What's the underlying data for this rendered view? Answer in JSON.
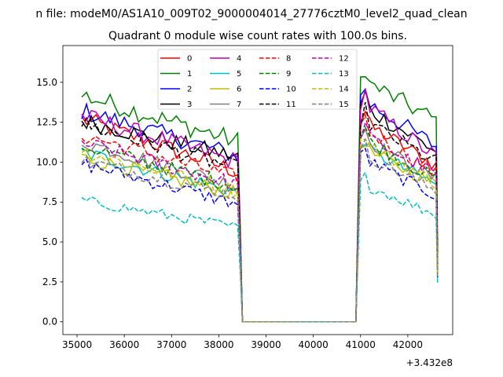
{
  "chart_data": {
    "type": "line",
    "suptitle": "n file: modeM0/AS1A10_009T02_9000004014_27776cztM0_level2_quad_clean",
    "title": "Quadrant 0 module wise count rates with 100.0s bins.",
    "xlabel": "",
    "ylabel": "",
    "x_offset_label": "+3.432e8",
    "xlim": [
      34700,
      42950
    ],
    "ylim": [
      -0.8,
      17.3
    ],
    "x_ticks": [
      35000,
      36000,
      37000,
      38000,
      39000,
      40000,
      41000,
      42000
    ],
    "x_tick_labels": [
      "35000",
      "36000",
      "37000",
      "38000",
      "39000",
      "40000",
      "41000",
      "42000"
    ],
    "y_ticks": [
      0,
      2.5,
      5,
      7.5,
      10,
      12.5,
      15
    ],
    "y_tick_labels": [
      "0.0",
      "2.5",
      "5.0",
      "7.5",
      "10.0",
      "12.5",
      "15.0"
    ],
    "grid": false,
    "legend_position": "top-center",
    "legend_columns": 4,
    "segments": {
      "first": {
        "x_start": 35100,
        "x_end": 38400
      },
      "zero": {
        "x_start": 38500,
        "x_end": 40900
      },
      "second": {
        "x_start": 41000,
        "x_end": 42600
      }
    },
    "series": [
      {
        "name": "0",
        "color": "#ff0000",
        "style": "solid",
        "first_start": 12.7,
        "first_end": 9.4,
        "second_start": 12.6,
        "second_end": 9.8
      },
      {
        "name": "1",
        "color": "#008000",
        "style": "solid",
        "first_start": 14.2,
        "first_end": 11.3,
        "second_start": 15.2,
        "second_end": 12.6
      },
      {
        "name": "2",
        "color": "#0000ff",
        "style": "solid",
        "first_start": 13.2,
        "first_end": 10.4,
        "second_start": 14.0,
        "second_end": 11.0
      },
      {
        "name": "3",
        "color": "#000000",
        "style": "solid",
        "first_start": 12.6,
        "first_end": 10.3,
        "second_start": 13.6,
        "second_end": 10.7
      },
      {
        "name": "4",
        "color": "#bf00bf",
        "style": "solid",
        "first_start": 12.9,
        "first_end": 10.0,
        "second_start": 13.8,
        "second_end": 10.3
      },
      {
        "name": "5",
        "color": "#00bfbf",
        "style": "solid",
        "first_start": 10.6,
        "first_end": 8.1,
        "second_start": 11.0,
        "second_end": 8.6
      },
      {
        "name": "6",
        "color": "#bfbf00",
        "style": "solid",
        "first_start": 10.3,
        "first_end": 8.0,
        "second_start": 10.9,
        "second_end": 8.6
      },
      {
        "name": "7",
        "color": "#808080",
        "style": "solid",
        "first_start": 11.3,
        "first_end": 8.5,
        "second_start": 11.6,
        "second_end": 8.9
      },
      {
        "name": "8",
        "color": "#ff0000",
        "style": "dashed",
        "first_start": 11.7,
        "first_end": 9.0,
        "second_start": 12.2,
        "second_end": 9.3
      },
      {
        "name": "9",
        "color": "#008000",
        "style": "dashed",
        "first_start": 11.0,
        "first_end": 8.5,
        "second_start": 11.6,
        "second_end": 8.9
      },
      {
        "name": "10",
        "color": "#0000ff",
        "style": "dashed",
        "first_start": 9.9,
        "first_end": 7.4,
        "second_start": 10.3,
        "second_end": 7.9
      },
      {
        "name": "11",
        "color": "#000000",
        "style": "dashed",
        "first_start": 12.4,
        "first_end": 9.6,
        "second_start": 12.7,
        "second_end": 10.0
      },
      {
        "name": "12",
        "color": "#bf00bf",
        "style": "dashed",
        "first_start": 11.2,
        "first_end": 8.6,
        "second_start": 11.8,
        "second_end": 9.2
      },
      {
        "name": "13",
        "color": "#00bfbf",
        "style": "dashed",
        "first_start": 7.6,
        "first_end": 5.9,
        "second_start": 8.7,
        "second_end": 6.7
      },
      {
        "name": "14",
        "color": "#bfbf00",
        "style": "dashed",
        "first_start": 10.7,
        "first_end": 8.2,
        "second_start": 11.3,
        "second_end": 8.7
      },
      {
        "name": "15",
        "color": "#808080",
        "style": "dashed",
        "first_start": 10.1,
        "first_end": 7.9,
        "second_start": 10.6,
        "second_end": 8.2
      }
    ]
  }
}
